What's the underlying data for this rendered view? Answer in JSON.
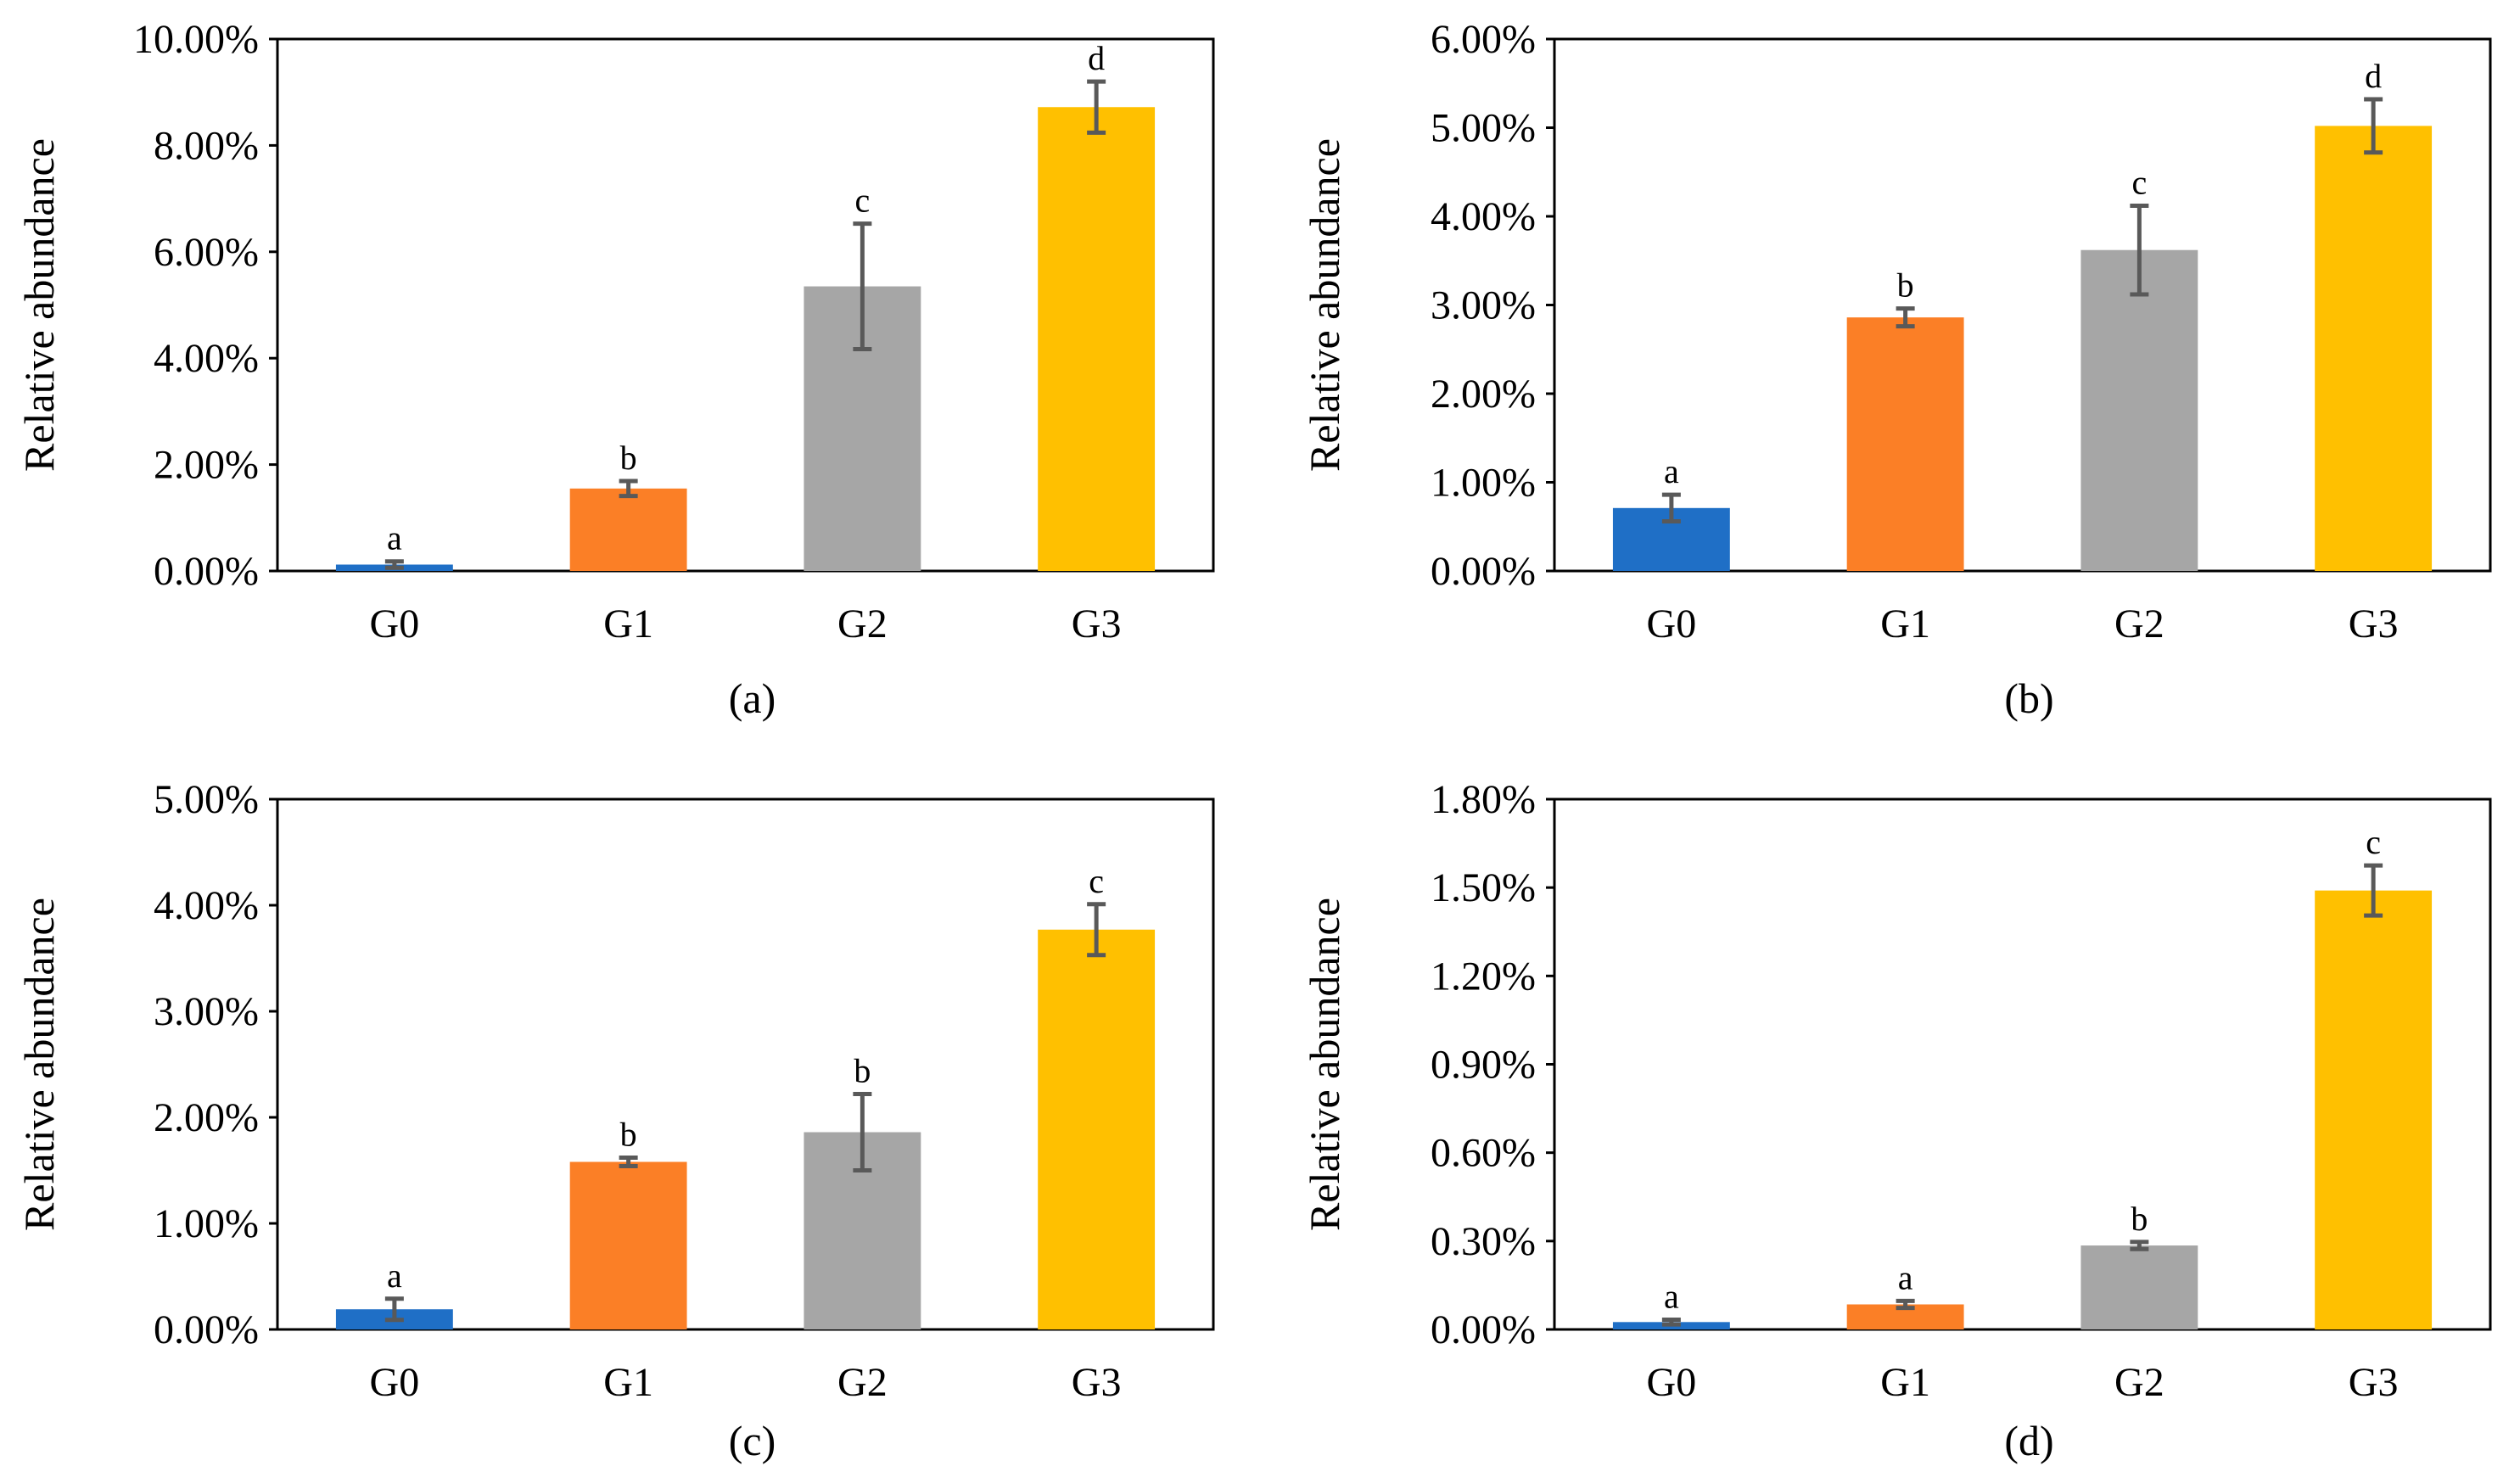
{
  "chart_data": [
    {
      "type": "bar",
      "panel_label": "(a)",
      "ylabel": "Relative abundance",
      "categories": [
        "G0",
        "G1",
        "G2",
        "G3"
      ],
      "values": [
        0.12,
        1.55,
        5.35,
        8.72
      ],
      "errors": [
        0.06,
        0.14,
        1.18,
        0.48
      ],
      "significance": [
        "a",
        "b",
        "c",
        "d"
      ],
      "ylim": [
        0,
        10
      ],
      "yticks": [
        0,
        2,
        4,
        6,
        8,
        10
      ],
      "ytick_labels": [
        "0.00%",
        "2.00%",
        "4.00%",
        "6.00%",
        "8.00%",
        "10.00%"
      ],
      "value_unit": "%"
    },
    {
      "type": "bar",
      "panel_label": "(b)",
      "ylabel": "Relative abundance",
      "categories": [
        "G0",
        "G1",
        "G2",
        "G3"
      ],
      "values": [
        0.71,
        2.86,
        3.62,
        5.02
      ],
      "errors": [
        0.15,
        0.1,
        0.5,
        0.3
      ],
      "significance": [
        "a",
        "b",
        "c",
        "d"
      ],
      "ylim": [
        0,
        6
      ],
      "yticks": [
        0,
        1,
        2,
        3,
        4,
        5,
        6
      ],
      "ytick_labels": [
        "0.00%",
        "1.00%",
        "2.00%",
        "3.00%",
        "4.00%",
        "5.00%",
        "6.00%"
      ],
      "value_unit": "%"
    },
    {
      "type": "bar",
      "panel_label": "(c)",
      "ylabel": "Relative abundance",
      "categories": [
        "G0",
        "G1",
        "G2",
        "G3"
      ],
      "values": [
        0.19,
        1.58,
        1.86,
        3.77
      ],
      "errors": [
        0.1,
        0.04,
        0.36,
        0.24
      ],
      "significance": [
        "a",
        "b",
        "b",
        "c"
      ],
      "ylim": [
        0,
        5
      ],
      "yticks": [
        0,
        1,
        2,
        3,
        4,
        5
      ],
      "ytick_labels": [
        "0.00%",
        "1.00%",
        "2.00%",
        "3.00%",
        "4.00%",
        "5.00%"
      ],
      "value_unit": "%"
    },
    {
      "type": "bar",
      "panel_label": "(d)",
      "ylabel": "Relative abundance",
      "categories": [
        "G0",
        "G1",
        "G2",
        "G3"
      ],
      "values": [
        0.025,
        0.085,
        0.285,
        1.49
      ],
      "errors": [
        0.008,
        0.012,
        0.012,
        0.085
      ],
      "significance": [
        "a",
        "a",
        "b",
        "c"
      ],
      "ylim": [
        0,
        1.8
      ],
      "yticks": [
        0,
        0.3,
        0.6,
        0.9,
        1.2,
        1.5,
        1.8
      ],
      "ytick_labels": [
        "0.00%",
        "0.30%",
        "0.60%",
        "0.90%",
        "1.20%",
        "1.50%",
        "1.80%"
      ],
      "value_unit": "%"
    }
  ],
  "colors": {
    "series": [
      "#1f6fc6",
      "#fb7f26",
      "#a6a6a6",
      "#ffc000"
    ],
    "error_bar": "#595959",
    "axis": "#000000"
  }
}
